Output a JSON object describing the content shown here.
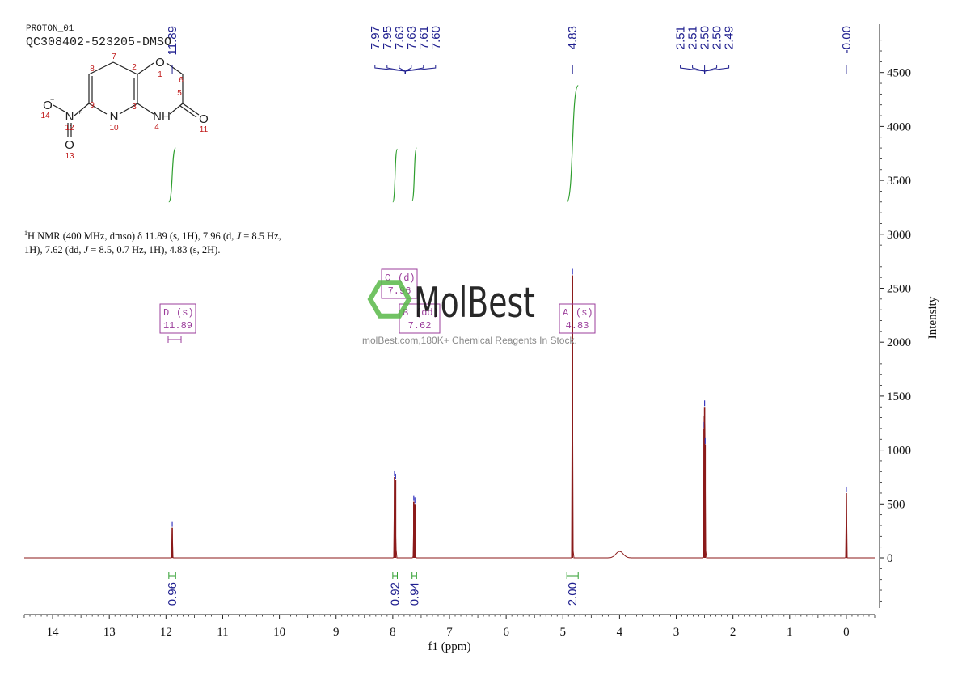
{
  "header": {
    "line1": "PROTON_01",
    "line2": "QC308402-523205-DMSO"
  },
  "summary": {
    "nucleus_sup": "1",
    "text_a": "H NMR (400 MHz, dmso) δ 11.89 (s, 1H), 7.96 (d, ",
    "j_label": "J",
    "text_b": " = 8.5 Hz,",
    "text_c": "1H), 7.62 (dd, ",
    "text_d": " = 8.5, 0.7 Hz, 1H), 4.83 (s, 2H)."
  },
  "watermark": {
    "brand": "MolBest",
    "tagline": "molBest.com,180K+ Chemical Reagents In Stock."
  },
  "structure": {
    "atoms": [
      "O",
      "N",
      "NH",
      "O",
      "N",
      "O",
      "O"
    ],
    "numbers": [
      "1",
      "2",
      "3",
      "4",
      "5",
      "6",
      "7",
      "8",
      "9",
      "10",
      "11",
      "12",
      "13",
      "14"
    ]
  },
  "colors": {
    "spectrum": "#8b1a1a",
    "peak_label": "#1f1f8f",
    "integral": "#2e9e2e",
    "multiplet": "#9b3d9b",
    "watermark": "#58b848"
  },
  "chart_data": {
    "type": "line",
    "xlabel": "f1 (ppm)",
    "ylabel": "Intensity",
    "xlim": [
      14.5,
      -0.5
    ],
    "ylim": [
      -550,
      4900
    ],
    "x_ticks": [
      14,
      13,
      12,
      11,
      10,
      9,
      8,
      7,
      6,
      5,
      4,
      3,
      2,
      1,
      0
    ],
    "y_ticks": [
      0,
      500,
      1000,
      1500,
      2000,
      2500,
      3000,
      3500,
      4000,
      4500
    ],
    "peaks": [
      {
        "ppm": 11.89,
        "height": 280
      },
      {
        "ppm": 7.97,
        "height": 750
      },
      {
        "ppm": 7.95,
        "height": 720
      },
      {
        "ppm": 7.63,
        "height": 520
      },
      {
        "ppm": 7.61,
        "height": 500
      },
      {
        "ppm": 4.83,
        "height": 2620
      },
      {
        "ppm": 4.0,
        "height": 60,
        "broad": true
      },
      {
        "ppm": 2.51,
        "height": 1200
      },
      {
        "ppm": 2.5,
        "height": 1400
      },
      {
        "ppm": 2.49,
        "height": 1050
      },
      {
        "ppm": 0.0,
        "height": 600
      }
    ],
    "peak_label_groups": [
      {
        "labels": [
          "11.89"
        ],
        "anchor": 11.89
      },
      {
        "labels": [
          "7.97",
          "7.95",
          "7.63",
          "7.63",
          "7.61",
          "7.60"
        ],
        "anchor": 7.78
      },
      {
        "labels": [
          "4.83"
        ],
        "anchor": 4.83
      },
      {
        "labels": [
          "2.51",
          "2.51",
          "2.50",
          "2.50",
          "2.49"
        ],
        "anchor": 2.5
      },
      {
        "labels": [
          "-0.00"
        ],
        "anchor": 0.0
      }
    ],
    "integrals": [
      {
        "from": 11.95,
        "to": 11.83,
        "value": "0.96",
        "curve_from": 3300,
        "curve_to": 3800
      },
      {
        "from": 8.0,
        "to": 7.92,
        "value": "0.92",
        "curve_from": 3300,
        "curve_to": 3790
      },
      {
        "from": 7.66,
        "to": 7.58,
        "value": "0.94",
        "curve_from": 3310,
        "curve_to": 3800
      },
      {
        "from": 4.93,
        "to": 4.73,
        "value": "2.00",
        "curve_from": 3300,
        "curve_to": 4380
      }
    ],
    "multiplets": [
      {
        "letter": "D",
        "type": "(s)",
        "shift": "11.89",
        "ppm": 11.89
      },
      {
        "letter": "C",
        "type": "(d)",
        "shift": "7.96",
        "ppm": 7.96
      },
      {
        "letter": "B",
        "type": "(dd)",
        "shift": "7.62",
        "ppm": 7.62
      },
      {
        "letter": "A",
        "type": "(s)",
        "shift": "4.83",
        "ppm": 4.83
      }
    ]
  }
}
